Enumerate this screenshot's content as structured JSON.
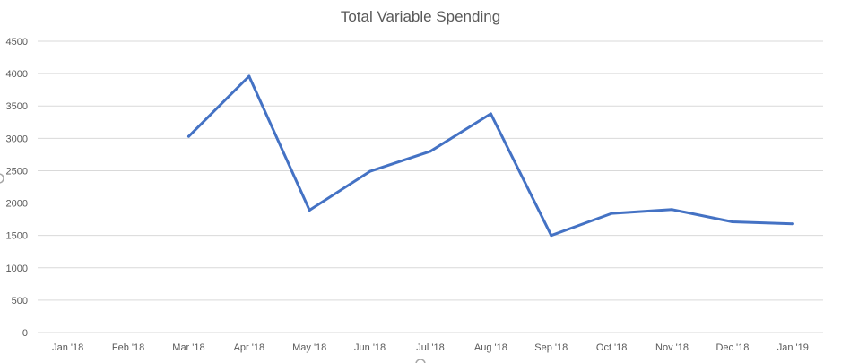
{
  "chart_data": {
    "type": "line",
    "title": "Total Variable Spending",
    "xlabel": "",
    "ylabel": "",
    "categories": [
      "Jan '18",
      "Feb '18",
      "Mar '18",
      "Apr '18",
      "May '18",
      "Jun '18",
      "Jul '18",
      "Aug '18",
      "Sep '18",
      "Oct '18",
      "Nov '18",
      "Dec '18",
      "Jan '19"
    ],
    "ylim": [
      0,
      4500
    ],
    "yticks": [
      0,
      500,
      1000,
      1500,
      2000,
      2500,
      3000,
      3500,
      4000,
      4500
    ],
    "grid": true,
    "legend": "none",
    "series": [
      {
        "color": "#4472c4",
        "values": [
          null,
          null,
          3030,
          3960,
          1890,
          2490,
          2800,
          3380,
          1500,
          1840,
          1900,
          1710,
          1680
        ]
      }
    ]
  }
}
